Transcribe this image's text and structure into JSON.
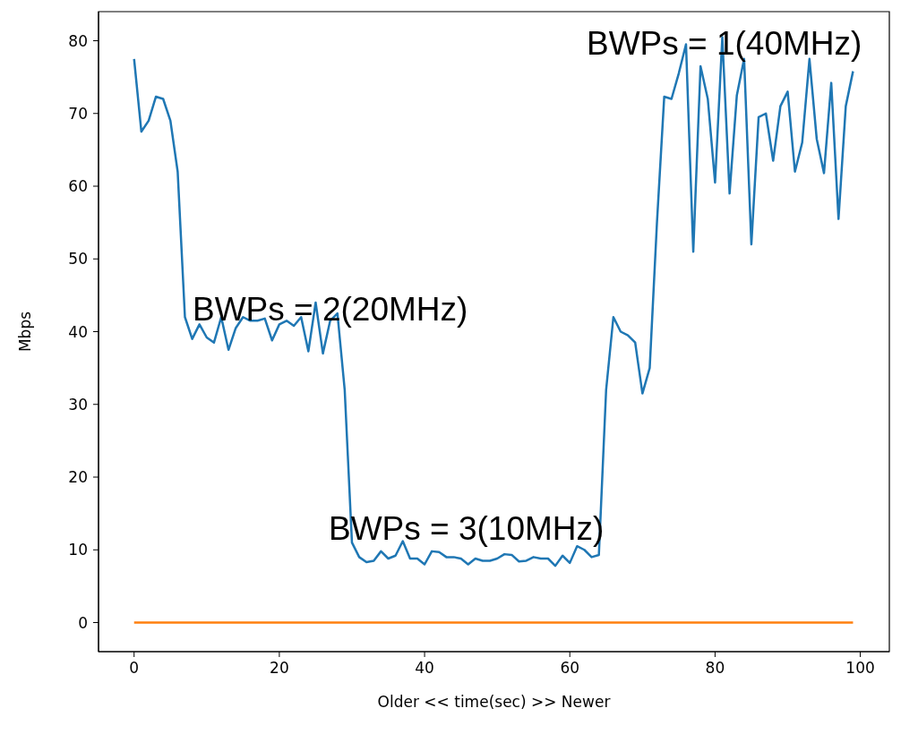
{
  "chart_data": {
    "type": "line",
    "xlabel": "Older << time(sec) >> Newer",
    "ylabel": "Mbps",
    "x": [
      0,
      1,
      2,
      3,
      4,
      5,
      6,
      7,
      8,
      9,
      10,
      11,
      12,
      13,
      14,
      15,
      16,
      17,
      18,
      19,
      20,
      21,
      22,
      23,
      24,
      25,
      26,
      27,
      28,
      29,
      30,
      31,
      32,
      33,
      34,
      35,
      36,
      37,
      38,
      39,
      40,
      41,
      42,
      43,
      44,
      45,
      46,
      47,
      48,
      49,
      50,
      51,
      52,
      53,
      54,
      55,
      56,
      57,
      58,
      59,
      60,
      61,
      62,
      63,
      64,
      65,
      66,
      67,
      68,
      69,
      70,
      71,
      72,
      73,
      74,
      75,
      76,
      77,
      78,
      79,
      80,
      81,
      82,
      83,
      84,
      85,
      86,
      87,
      88,
      89,
      90,
      91,
      92,
      93,
      94,
      95,
      96,
      97,
      98,
      99
    ],
    "series": [
      {
        "color": "#1f77b4",
        "values": [
          77.5,
          67.5,
          69,
          72.3,
          72,
          69,
          62,
          42,
          39,
          41,
          39.2,
          38.5,
          42,
          37.5,
          40.5,
          42,
          41.5,
          41.5,
          41.8,
          38.8,
          41,
          41.5,
          40.8,
          42,
          37.3,
          44,
          37,
          41.5,
          42.5,
          32,
          11,
          9,
          8.3,
          8.5,
          9.8,
          8.8,
          9.2,
          11.2,
          8.8,
          8.8,
          8,
          9.8,
          9.7,
          9,
          9,
          8.8,
          8,
          8.8,
          8.5,
          8.5,
          8.8,
          9.4,
          9.3,
          8.4,
          8.5,
          9,
          8.8,
          8.8,
          7.8,
          9.2,
          8.2,
          10.5,
          10,
          9,
          9.3,
          32,
          42,
          40,
          39.5,
          38.5,
          31.5,
          35,
          55,
          72.3,
          72,
          75.5,
          79.5,
          51,
          76.5,
          72,
          60.5,
          80.5,
          59,
          72.5,
          77.5,
          52,
          69.5,
          70,
          63.5,
          71,
          73,
          62,
          66,
          77.5,
          66.5,
          61.8,
          74.2,
          55.5,
          71,
          75.8
        ]
      },
      {
        "color": "#ff7f0e",
        "values": [
          0,
          0,
          0,
          0,
          0,
          0,
          0,
          0,
          0,
          0,
          0,
          0,
          0,
          0,
          0,
          0,
          0,
          0,
          0,
          0,
          0,
          0,
          0,
          0,
          0,
          0,
          0,
          0,
          0,
          0,
          0,
          0,
          0,
          0,
          0,
          0,
          0,
          0,
          0,
          0,
          0,
          0,
          0,
          0,
          0,
          0,
          0,
          0,
          0,
          0,
          0,
          0,
          0,
          0,
          0,
          0,
          0,
          0,
          0,
          0,
          0,
          0,
          0,
          0,
          0,
          0,
          0,
          0,
          0,
          0,
          0,
          0,
          0,
          0,
          0,
          0,
          0,
          0,
          0,
          0,
          0,
          0,
          0,
          0,
          0,
          0,
          0,
          0,
          0,
          0,
          0,
          0,
          0,
          0,
          0,
          0,
          0,
          0,
          0,
          0
        ]
      }
    ],
    "xlim": [
      -4.9,
      104
    ],
    "ylim": [
      -4,
      84
    ],
    "xticks": [
      0,
      20,
      40,
      60,
      80,
      100
    ],
    "yticks": [
      0,
      10,
      20,
      30,
      40,
      50,
      60,
      70,
      80
    ],
    "grid": false,
    "marker": "none",
    "line_style": "solid",
    "annotations": [
      "BWPs = 2(20MHz)",
      "BWPs = 3(10MHz)",
      "BWPs = 1(40MHz)"
    ]
  }
}
